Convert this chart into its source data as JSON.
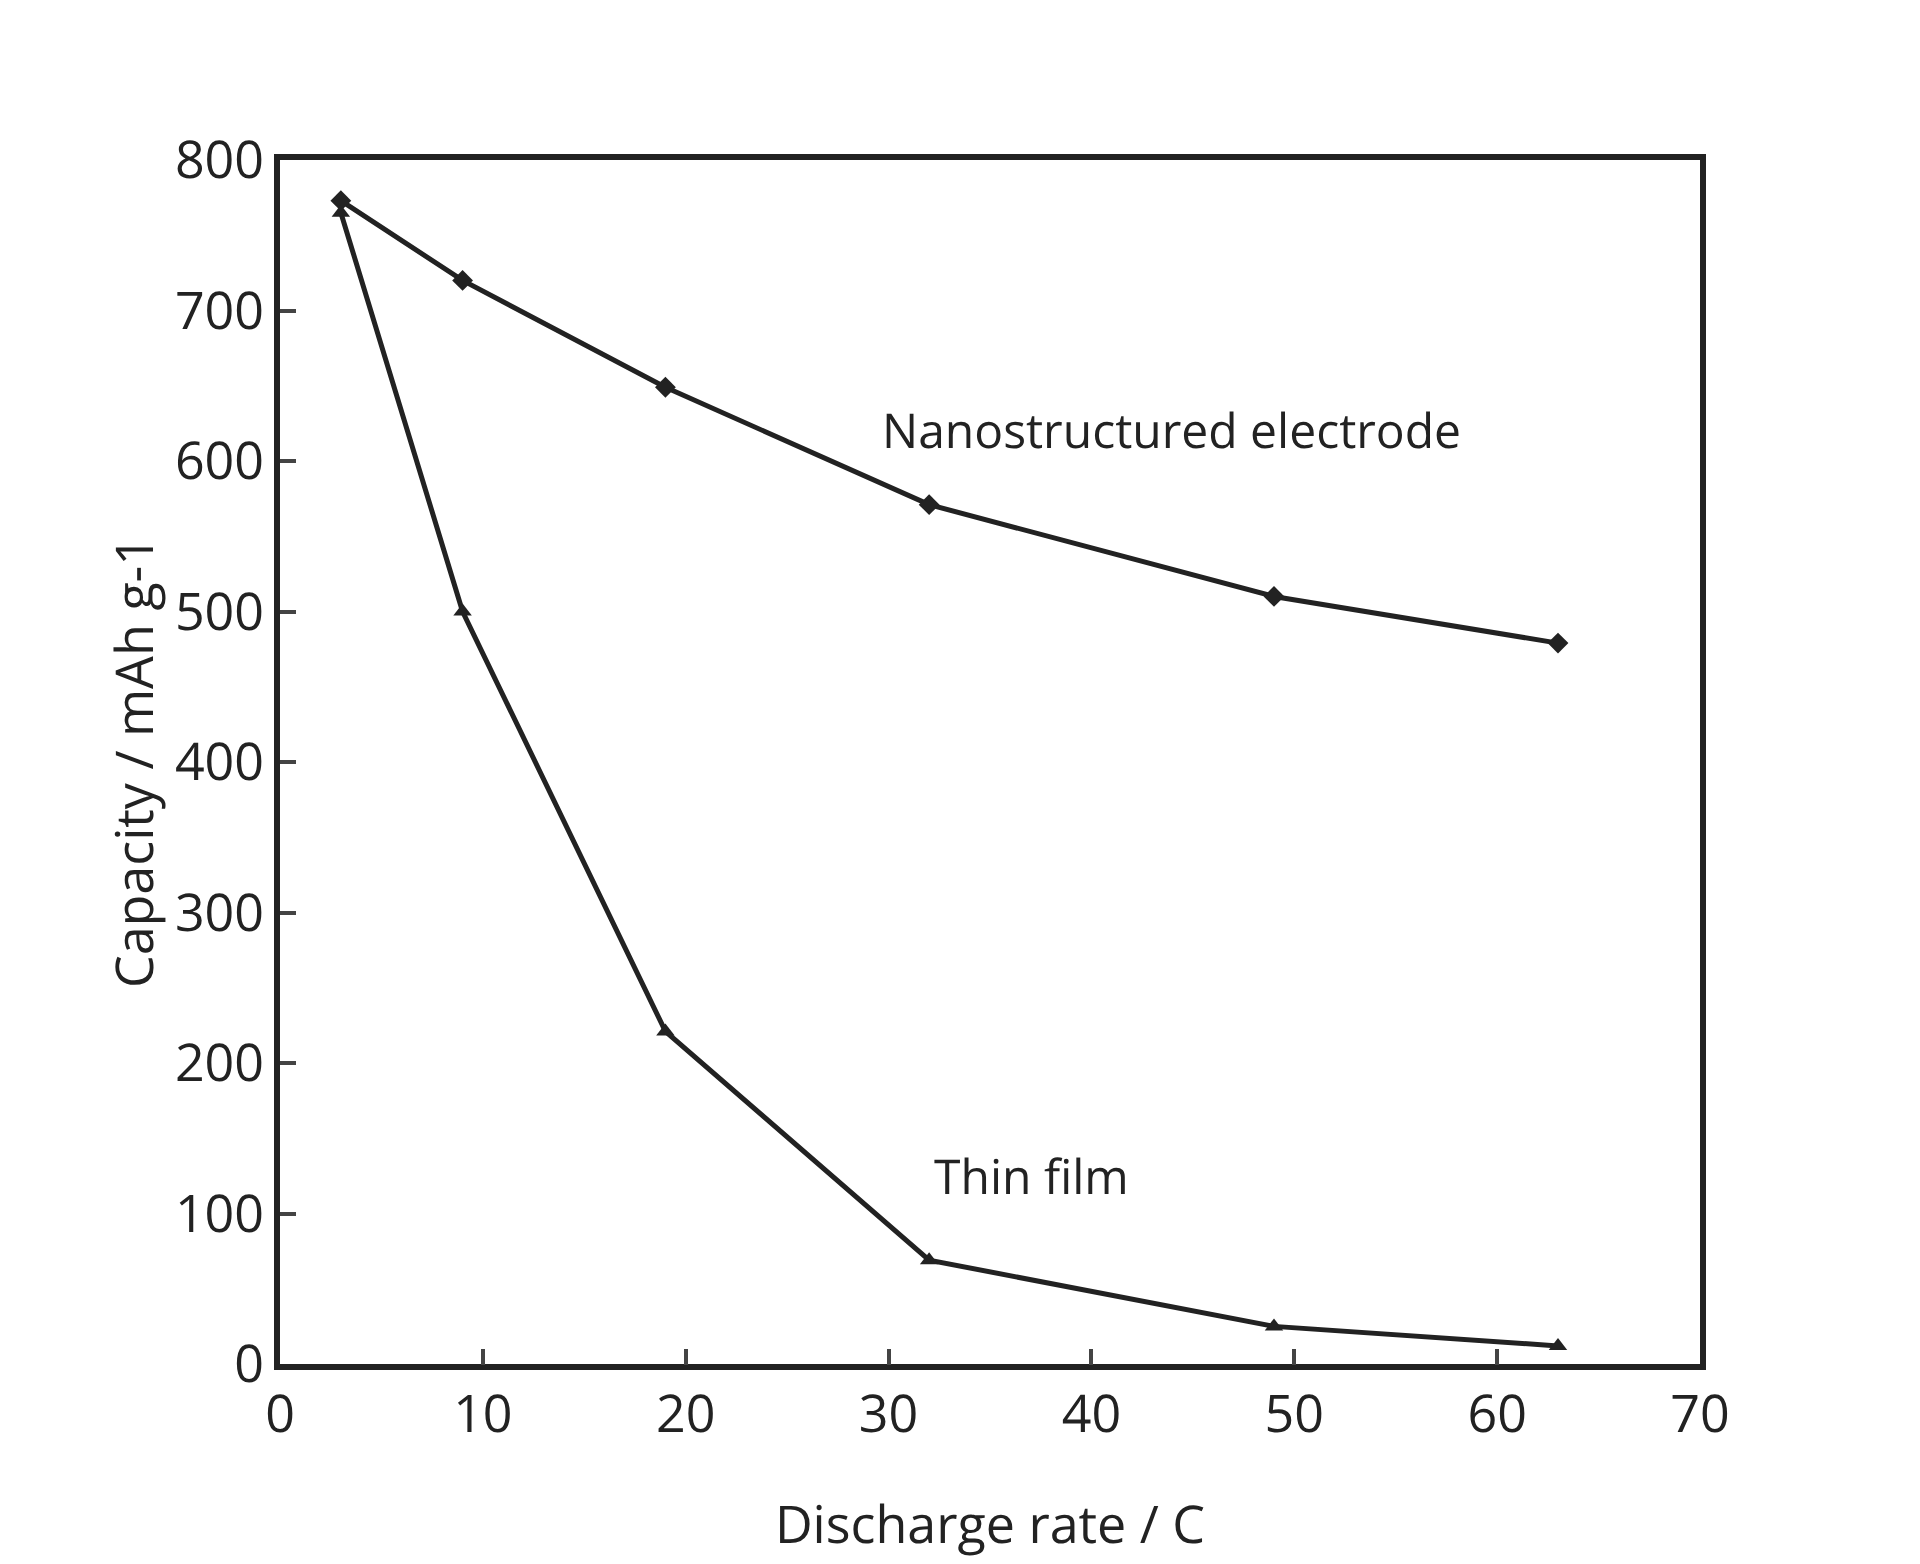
{
  "chart_data": {
    "type": "line",
    "xlabel": "Discharge rate / C",
    "ylabel": "Capacity / mAh g-1",
    "xlim": [
      0,
      70
    ],
    "xticks": [
      0,
      10,
      20,
      30,
      40,
      50,
      60,
      70
    ],
    "ylim": [
      0,
      800
    ],
    "yticks": [
      0,
      100,
      200,
      300,
      400,
      500,
      600,
      700,
      800
    ],
    "grid": false,
    "legend": false,
    "line_style": "solid",
    "series": [
      {
        "name": "Nanostructured electrode",
        "color": "#222222",
        "marker": "diamond",
        "x": [
          3,
          9,
          19,
          32,
          49,
          63
        ],
        "values": [
          773,
          720,
          649,
          571,
          510,
          479
        ]
      },
      {
        "name": "Thin film",
        "color": "#222222",
        "marker": "triangle",
        "x": [
          3,
          9,
          19,
          32,
          49,
          63
        ],
        "values": [
          765,
          500,
          221,
          69,
          25,
          12
        ]
      }
    ]
  }
}
